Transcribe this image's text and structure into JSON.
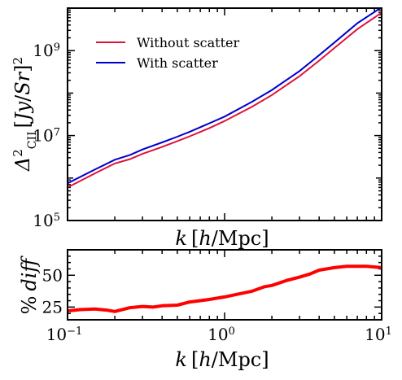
{
  "chart_data": [
    {
      "type": "line",
      "xscale": "log",
      "yscale": "log",
      "xlim": [
        0.1,
        10
      ],
      "ylim": [
        100000,
        10000000000
      ],
      "ylabel": "Δ²_CII [Jy/Sr]²",
      "xlabel": "k [h/Mpc]",
      "yticks": [
        {
          "value": 100000,
          "base": "10",
          "exp": "5"
        },
        {
          "value": 10000000,
          "base": "10",
          "exp": "7"
        },
        {
          "value": 1000000000,
          "base": "10",
          "exp": "9"
        }
      ],
      "legend": {
        "placement": "upper-left"
      },
      "series": [
        {
          "name": "Without scatter",
          "color": "#dc143c",
          "x": [
            0.1,
            0.15,
            0.2,
            0.25,
            0.3,
            0.4,
            0.5,
            0.6,
            0.8,
            1.0,
            1.5,
            2.0,
            3.0,
            4.0,
            5.0,
            7.0,
            10.0
          ],
          "y": [
            600000,
            1300000,
            2200000,
            2800000,
            3700000,
            5400000,
            7400000,
            9600000,
            15000000,
            22000000,
            48000000,
            90000000,
            250000000,
            580000000,
            1150000000,
            3200000000,
            7800000000
          ]
        },
        {
          "name": "With scatter",
          "color": "#0000cd",
          "x": [
            0.1,
            0.15,
            0.2,
            0.25,
            0.3,
            0.4,
            0.5,
            0.6,
            0.8,
            1.0,
            1.5,
            2.0,
            3.0,
            4.0,
            5.0,
            7.0,
            10.0
          ],
          "y": [
            750000,
            1600000,
            2700000,
            3500000,
            4700000,
            6900000,
            9400000,
            12300000,
            19500000,
            28000000,
            63000000,
            118000000,
            330000000,
            780000000,
            1550000000,
            4400000000,
            10500000000
          ]
        }
      ]
    },
    {
      "type": "line",
      "xscale": "log",
      "xlim": [
        0.1,
        10
      ],
      "ylim": [
        15,
        70
      ],
      "ylabel": "% diff",
      "xlabel": "k [h/Mpc]",
      "yticks": [
        25,
        50
      ],
      "xticks": [
        {
          "value": 0.1,
          "base": "10",
          "exp": "−1"
        },
        {
          "value": 1,
          "base": "10",
          "exp": "0"
        },
        {
          "value": 10,
          "base": "10",
          "exp": "1"
        }
      ],
      "series": [
        {
          "color": "#ff0000",
          "x": [
            0.1,
            0.12,
            0.15,
            0.18,
            0.2,
            0.25,
            0.3,
            0.35,
            0.4,
            0.5,
            0.6,
            0.7,
            0.8,
            1.0,
            1.2,
            1.5,
            1.8,
            2.0,
            2.5,
            3.0,
            3.5,
            4.0,
            5.0,
            6.0,
            7.0,
            8.0,
            10.0
          ],
          "y": [
            22,
            23,
            23.5,
            22.5,
            21.5,
            24.5,
            25.5,
            25,
            26,
            26.5,
            29,
            30,
            31,
            33,
            35,
            37.5,
            41,
            42,
            46,
            48.5,
            51,
            54,
            56,
            57,
            57,
            57,
            56
          ]
        }
      ]
    }
  ]
}
